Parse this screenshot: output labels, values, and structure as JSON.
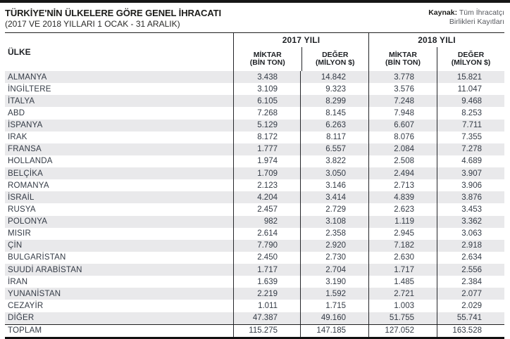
{
  "masthead": {
    "title": "TÜRKİYE'NİN ÜLKELERE GÖRE GENEL İHRACATI",
    "subtitle": "(2017 VE 2018 YILLARI 1 OCAK - 31 ARALIK)",
    "source": {
      "label": "Kaynak:",
      "line1": "Tüm İhracatçı",
      "line2": "Birlikleri Kayıtları"
    }
  },
  "table": {
    "country_header": "ÜLKE",
    "year_groups": [
      {
        "label": "2017 YILI",
        "columns": [
          {
            "line1": "MİKTAR",
            "line2": "(BİN TON)"
          },
          {
            "line1": "DEĞER",
            "line2": "(MİLYON $)"
          }
        ]
      },
      {
        "label": "2018 YILI",
        "columns": [
          {
            "line1": "MİKTAR",
            "line2": "(BİN TON)"
          },
          {
            "line1": "DEĞER",
            "line2": "(MİLYON $)"
          }
        ]
      }
    ],
    "rows": [
      {
        "country": "ALMANYA",
        "values": [
          "3.438",
          "14.842",
          "3.778",
          "15.821"
        ]
      },
      {
        "country": "İNGİLTERE",
        "values": [
          "3.109",
          "9.323",
          "3.576",
          "11.047"
        ]
      },
      {
        "country": "İTALYA",
        "values": [
          "6.105",
          "8.299",
          "7.248",
          "9.468"
        ]
      },
      {
        "country": "ABD",
        "values": [
          "7.268",
          "8.145",
          "7.948",
          "8.253"
        ]
      },
      {
        "country": "İSPANYA",
        "values": [
          "5.129",
          "6.263",
          "6.607",
          "7.711"
        ]
      },
      {
        "country": "IRAK",
        "values": [
          "8.172",
          "8.117",
          "8.076",
          "7.355"
        ]
      },
      {
        "country": "FRANSA",
        "values": [
          "1.777",
          "6.557",
          "2.084",
          "7.278"
        ]
      },
      {
        "country": "HOLLANDA",
        "values": [
          "1.974",
          "3.822",
          "2.508",
          "4.689"
        ]
      },
      {
        "country": "BELÇİKA",
        "values": [
          "1.709",
          "3.050",
          "2.494",
          "3.907"
        ]
      },
      {
        "country": "ROMANYA",
        "values": [
          "2.123",
          "3.146",
          "2.713",
          "3.906"
        ]
      },
      {
        "country": "İSRAİL",
        "values": [
          "4.204",
          "3.414",
          "4.839",
          "3.876"
        ]
      },
      {
        "country": "RUSYA",
        "values": [
          "2.457",
          "2.729",
          "2.623",
          "3.453"
        ]
      },
      {
        "country": "POLONYA",
        "values": [
          "982",
          "3.108",
          "1.119",
          "3.362"
        ]
      },
      {
        "country": "MISIR",
        "values": [
          "2.614",
          "2.358",
          "2.945",
          "3.063"
        ]
      },
      {
        "country": "ÇİN",
        "values": [
          "7.790",
          "2.920",
          "7.182",
          "2.918"
        ]
      },
      {
        "country": "BULGARİSTAN",
        "values": [
          "2.450",
          "2.730",
          "2.630",
          "2.634"
        ]
      },
      {
        "country": "SUUDİ ARABİSTAN",
        "values": [
          "1.717",
          "2.704",
          "1.717",
          "2.556"
        ]
      },
      {
        "country": "İRAN",
        "values": [
          "1.639",
          "3.190",
          "1.485",
          "2.384"
        ]
      },
      {
        "country": "YUNANİSTAN",
        "values": [
          "2.219",
          "1.592",
          "2.721",
          "2.077"
        ]
      },
      {
        "country": "CEZAYİR",
        "values": [
          "1.011",
          "1.715",
          "1.003",
          "2.029"
        ]
      },
      {
        "country": "DİĞER",
        "values": [
          "47.387",
          "49.160",
          "51.755",
          "55.741"
        ]
      }
    ],
    "total_row": {
      "country": "TOPLAM",
      "values": [
        "115.275",
        "147.185",
        "127.052",
        "163.528"
      ]
    }
  },
  "colors": {
    "stripe": "#e9e9eb",
    "rule": "#1f1f1f",
    "text_dark": "#1c1c1a",
    "text_table": "#343b46"
  },
  "chart_data": {
    "type": "table",
    "title": "TÜRKİYE'NİN ÜLKELERE GÖRE GENEL İHRACATI",
    "subtitle": "(2017 VE 2018 YILLARI 1 OCAK - 31 ARALIK)",
    "source": "Kaynak: Tüm İhracatçı Birlikleri Kayıtları",
    "columns": [
      "ÜLKE",
      "2017 MİKTAR (BİN TON)",
      "2017 DEĞER (MİLYON $)",
      "2018 MİKTAR (BİN TON)",
      "2018 DEĞER (MİLYON $)"
    ],
    "rows": [
      [
        "ALMANYA",
        3438,
        14842,
        3778,
        15821
      ],
      [
        "İNGİLTERE",
        3109,
        9323,
        3576,
        11047
      ],
      [
        "İTALYA",
        6105,
        8299,
        7248,
        9468
      ],
      [
        "ABD",
        7268,
        8145,
        7948,
        8253
      ],
      [
        "İSPANYA",
        5129,
        6263,
        6607,
        7711
      ],
      [
        "IRAK",
        8172,
        8117,
        8076,
        7355
      ],
      [
        "FRANSA",
        1777,
        6557,
        2084,
        7278
      ],
      [
        "HOLLANDA",
        1974,
        3822,
        2508,
        4689
      ],
      [
        "BELÇİKA",
        1709,
        3050,
        2494,
        3907
      ],
      [
        "ROMANYA",
        2123,
        3146,
        2713,
        3906
      ],
      [
        "İSRAİL",
        4204,
        3414,
        4839,
        3876
      ],
      [
        "RUSYA",
        2457,
        2729,
        2623,
        3453
      ],
      [
        "POLONYA",
        982,
        3108,
        1119,
        3362
      ],
      [
        "MISIR",
        2614,
        2358,
        2945,
        3063
      ],
      [
        "ÇİN",
        7790,
        2920,
        7182,
        2918
      ],
      [
        "BULGARİSTAN",
        2450,
        2730,
        2630,
        2634
      ],
      [
        "SUUDİ ARABİSTAN",
        1717,
        2704,
        1717,
        2556
      ],
      [
        "İRAN",
        1639,
        3190,
        1485,
        2384
      ],
      [
        "YUNANİSTAN",
        2219,
        1592,
        2721,
        2077
      ],
      [
        "CEZAYİR",
        1011,
        1715,
        1003,
        2029
      ],
      [
        "DİĞER",
        47387,
        49160,
        51755,
        55741
      ],
      [
        "TOPLAM",
        115275,
        147185,
        127052,
        163528
      ]
    ]
  }
}
